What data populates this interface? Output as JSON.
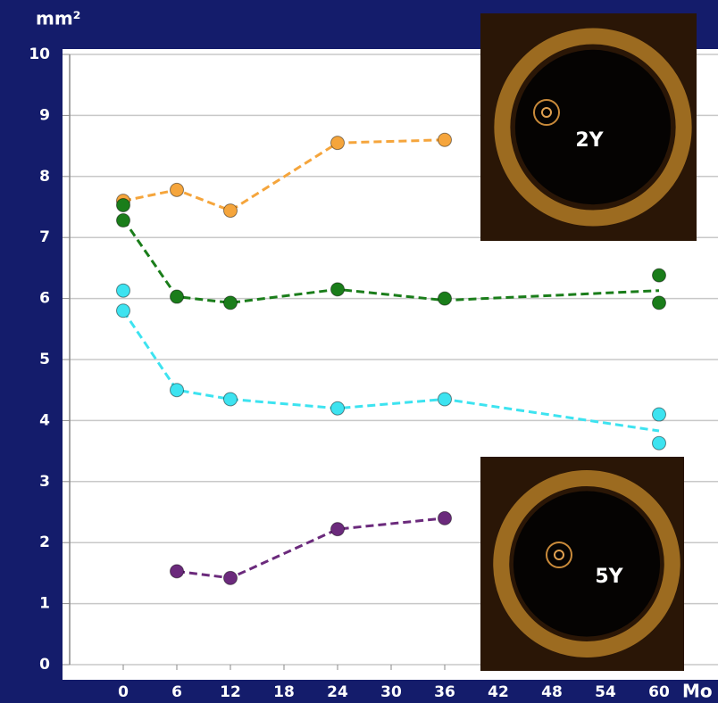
{
  "chart_data": {
    "type": "line",
    "title": "mm²",
    "x_label": "Mo",
    "xlim": [
      -6,
      66
    ],
    "xticks": [
      0,
      6,
      12,
      18,
      24,
      30,
      36,
      42,
      48,
      54,
      60
    ],
    "ylim": [
      0,
      10
    ],
    "yticks": [
      0,
      1,
      2,
      3,
      4,
      5,
      6,
      7,
      8,
      9,
      10
    ],
    "grid": true,
    "series": [
      {
        "color": "#f5a53c",
        "x": [
          0,
          6,
          12,
          24,
          36
        ],
        "values": [
          7.6,
          7.78,
          7.44,
          8.55,
          8.6
        ],
        "points": {
          "x": [
            0,
            6,
            12,
            24,
            36
          ],
          "y": [
            7.6,
            7.78,
            7.44,
            8.55,
            8.6
          ]
        }
      },
      {
        "color": "#1a7d1a",
        "x": [
          0,
          6,
          12,
          24,
          36,
          60
        ],
        "values": [
          7.3,
          6.03,
          5.93,
          6.15,
          5.97,
          6.13
        ],
        "points": {
          "x": [
            0,
            0,
            6,
            12,
            24,
            36,
            60,
            60
          ],
          "y": [
            7.53,
            7.28,
            6.03,
            5.93,
            6.15,
            6.0,
            6.38,
            5.93
          ]
        }
      },
      {
        "color": "#3de3f0",
        "x": [
          0,
          6,
          12,
          24,
          36,
          60
        ],
        "values": [
          5.8,
          4.5,
          4.35,
          4.2,
          4.35,
          3.83
        ],
        "points": {
          "x": [
            0,
            0,
            6,
            12,
            24,
            36,
            60,
            60
          ],
          "y": [
            6.13,
            5.8,
            4.5,
            4.35,
            4.2,
            4.35,
            4.1,
            3.63
          ]
        }
      },
      {
        "color": "#6b2a7c",
        "x": [
          6,
          12,
          24,
          36
        ],
        "values": [
          1.53,
          1.42,
          2.22,
          2.4
        ],
        "points": {
          "x": [
            6,
            12,
            24,
            36
          ],
          "y": [
            1.53,
            1.42,
            2.22,
            2.4
          ]
        }
      }
    ],
    "annotations": [
      "2Y",
      "5Y"
    ]
  }
}
